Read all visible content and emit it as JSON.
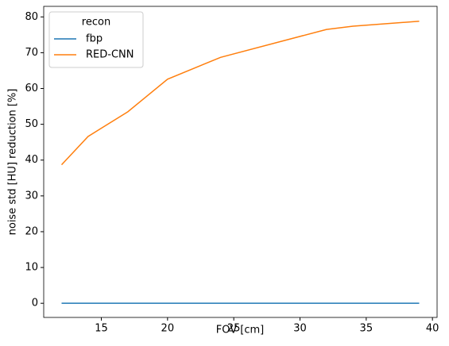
{
  "chart_data": {
    "type": "line",
    "x_label": "FOV [cm]",
    "y_label": "noise std [HU] reduction [%]",
    "legend_title": "recon",
    "legend_position": "upper left",
    "x": [
      12,
      14,
      17,
      20,
      24,
      32,
      34,
      39
    ],
    "series": [
      {
        "name": "fbp",
        "color": "#1f77b4",
        "values": [
          0,
          0,
          0,
          0,
          0,
          0,
          0,
          0
        ]
      },
      {
        "name": "RED-CNN",
        "color": "#ff7f0e",
        "values": [
          38.7,
          46.6,
          53.5,
          62.6,
          68.7,
          76.5,
          77.4,
          78.8
        ]
      }
    ],
    "xlim": [
      10.65,
      40.35
    ],
    "ylim": [
      -3.95,
      82.95
    ],
    "xticks": [
      15,
      20,
      25,
      30,
      35,
      40
    ],
    "yticks": [
      0,
      10,
      20,
      30,
      40,
      50,
      60,
      70,
      80
    ],
    "grid": false
  }
}
